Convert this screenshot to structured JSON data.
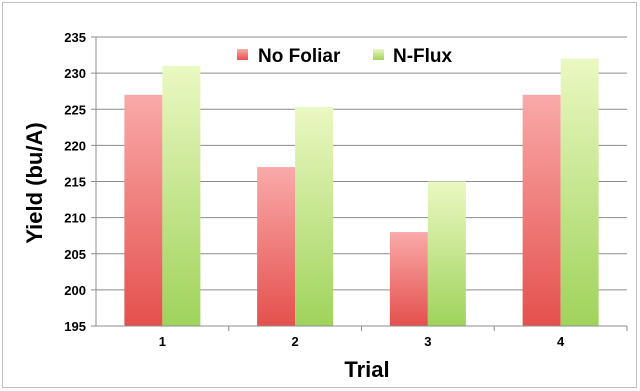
{
  "chart_data": {
    "type": "bar",
    "categories": [
      "1",
      "2",
      "3",
      "4"
    ],
    "series": [
      {
        "name": "No Foliar",
        "values": [
          227,
          217,
          208,
          227
        ],
        "color_top": "#f9aaa9",
        "color_bottom": "#e4504d"
      },
      {
        "name": "N-Flux",
        "values": [
          231,
          225.3,
          215,
          232
        ],
        "color_top": "#ebf8c2",
        "color_bottom": "#9fd35b"
      }
    ],
    "title": "",
    "xlabel": "Trial",
    "ylabel": "Yield (bu/A)",
    "ylim": [
      195,
      235
    ],
    "yticks": [
      "195",
      "200",
      "205",
      "210",
      "215",
      "220",
      "225",
      "230",
      "235"
    ],
    "grid": true,
    "legend_position": "top-center",
    "gridline_color": "#8c8c8c",
    "frame_color": "#bfbfbf"
  }
}
